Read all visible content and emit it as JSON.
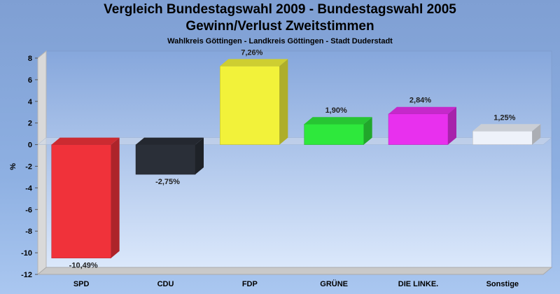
{
  "chart_data": {
    "type": "bar",
    "title": "Vergleich Bundestagswahl 2009 - Bundestagswahl 2005",
    "subtitle": "Gewinn/Verlust Zweitstimmen",
    "subtitle2": "Wahlkreis Göttingen - Landkreis Göttingen - Stadt Duderstadt",
    "ylabel": "%",
    "ylim": [
      -12,
      8
    ],
    "yticks": [
      8,
      6,
      4,
      2,
      0,
      -2,
      -4,
      -6,
      -8,
      -10,
      -12
    ],
    "categories": [
      "SPD",
      "CDU",
      "FDP",
      "GRÜNE",
      "DIE LINKE.",
      "Sonstige"
    ],
    "values": [
      -10.49,
      -2.75,
      7.26,
      1.9,
      2.84,
      1.25
    ],
    "value_labels": [
      "-10,49%",
      "-2,75%",
      "7,26%",
      "1,90%",
      "2,84%",
      "1,25%"
    ],
    "colors": [
      "#f0323a",
      "#2a2f38",
      "#f2f23a",
      "#2ee83c",
      "#e830ee",
      "#eef2fa"
    ],
    "grid": false,
    "legend": "none"
  }
}
